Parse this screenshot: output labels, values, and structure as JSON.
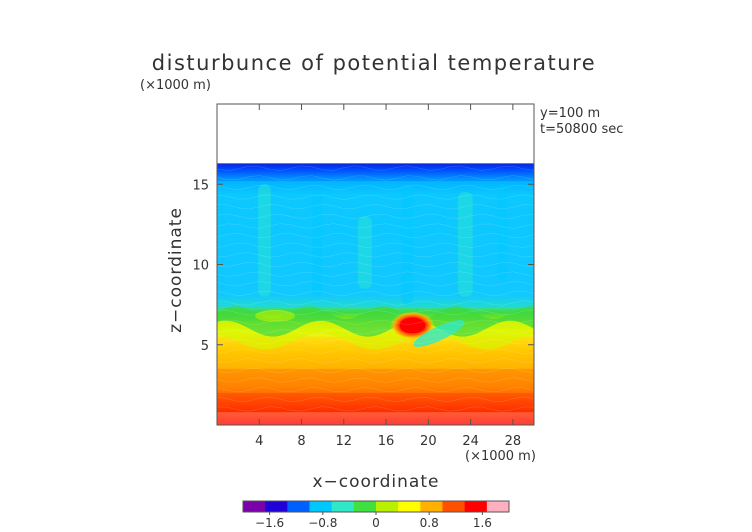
{
  "chart_data": {
    "type": "heatmap",
    "title": "disturbunce of potential temperature",
    "y_unit": "(×1000 m)",
    "x_unit": "(×1000 m)",
    "xlabel": "x−coordinate",
    "ylabel": "z−coordinate",
    "annotations": [
      "y=100 m",
      "t=50800 sec"
    ],
    "xlim": [
      0,
      30
    ],
    "ylim": [
      0,
      20
    ],
    "x_ticks": [
      4,
      8,
      12,
      16,
      20,
      24,
      28
    ],
    "y_ticks": [
      5,
      10,
      15
    ],
    "x_tick_labels": [
      "4",
      "8",
      "12",
      "16",
      "20",
      "24",
      "28"
    ],
    "y_tick_labels": [
      "5",
      "10",
      "15"
    ],
    "data_top": 16.3,
    "colorbar": {
      "range": [
        -2.0,
        2.0
      ],
      "ticks": [
        -1.6,
        -0.8,
        0,
        0.8,
        1.6
      ],
      "tick_labels": [
        "−1.6",
        "−0.8",
        "0",
        "0.8",
        "1.6"
      ],
      "colors": [
        "#7a00a8",
        "#1f00d8",
        "#0060ff",
        "#00c8ff",
        "#30e8c8",
        "#40e040",
        "#b8f000",
        "#ffff00",
        "#ffb000",
        "#ff5000",
        "#ff0000",
        "#ffb0c0"
      ]
    },
    "regions": [
      {
        "z_from": 0,
        "z_to": 0.8,
        "value": 1.7
      },
      {
        "z_from": 0.8,
        "z_to": 2,
        "value": 1.4
      },
      {
        "z_from": 2,
        "z_to": 3.5,
        "value": 1.0
      },
      {
        "z_from": 3.5,
        "z_to": 5.5,
        "value": 0.7
      },
      {
        "z_from": 5.5,
        "z_to": 6.5,
        "value": 0.1
      },
      {
        "z_from": 6.5,
        "z_to": 7.3,
        "value": -0.2
      },
      {
        "z_from": 7.3,
        "z_to": 15.2,
        "value": -0.75
      },
      {
        "z_from": 15.2,
        "z_to": 16.3,
        "value": -1.3
      }
    ],
    "features": [
      {
        "x": 18.5,
        "z": 6.2,
        "value": 1.8
      },
      {
        "x": 21,
        "z": 5.7,
        "value": -0.5
      },
      {
        "x": 5.5,
        "z": 6.8,
        "value": 0.1
      }
    ]
  }
}
